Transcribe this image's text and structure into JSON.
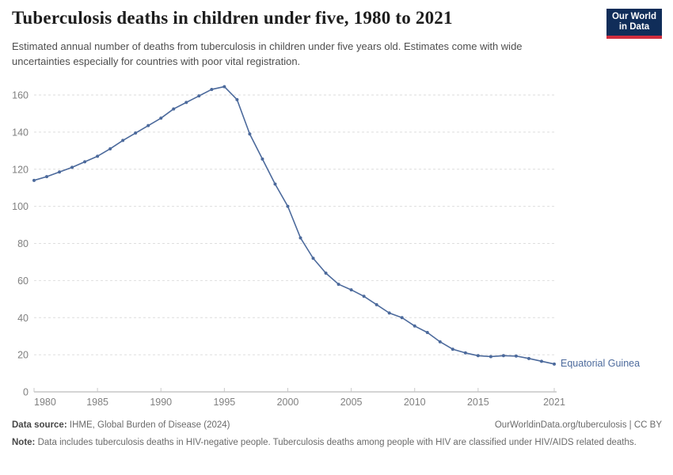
{
  "header": {
    "title": "Tuberculosis deaths in children under five, 1980 to 2021",
    "subtitle": "Estimated annual number of deaths from tuberculosis in children under five years old. Estimates come with wide uncertainties especially for countries with poor vital registration.",
    "logo": {
      "line1": "Our World",
      "line2": "in Data",
      "bg": "#102D59",
      "accent": "#D12D3E"
    }
  },
  "chart_data": {
    "type": "line",
    "title": "Tuberculosis deaths in children under five, 1980 to 2021",
    "xlabel": "",
    "ylabel": "",
    "xlim": [
      1980,
      2021
    ],
    "ylim": [
      0,
      170
    ],
    "x_ticks": [
      1980,
      1985,
      1990,
      1995,
      2000,
      2005,
      2010,
      2015,
      2021
    ],
    "y_ticks": [
      0,
      20,
      40,
      60,
      80,
      100,
      120,
      140,
      160
    ],
    "grid": "horizontal-dashed",
    "legend_position": "end-of-line-label",
    "end_label": "Equatorial Guinea",
    "series": [
      {
        "name": "Equatorial Guinea",
        "color": "#4C6A9C",
        "x": [
          1980,
          1981,
          1982,
          1983,
          1984,
          1985,
          1986,
          1987,
          1988,
          1989,
          1990,
          1991,
          1992,
          1993,
          1994,
          1995,
          1996,
          1997,
          1998,
          1999,
          2000,
          2001,
          2002,
          2003,
          2004,
          2005,
          2006,
          2007,
          2008,
          2009,
          2010,
          2011,
          2012,
          2013,
          2014,
          2015,
          2016,
          2017,
          2018,
          2019,
          2020,
          2021
        ],
        "values": [
          114,
          116,
          118.5,
          121,
          124,
          127,
          131,
          135.5,
          139.5,
          143.5,
          147.5,
          152.5,
          156,
          159.5,
          163,
          164.5,
          157.5,
          139,
          125.5,
          112,
          100,
          83,
          72,
          64,
          58,
          55,
          51.5,
          47,
          42.5,
          40,
          35.5,
          32,
          27,
          23,
          21,
          19.5,
          19,
          19.5,
          19.3,
          18,
          16.5,
          15
        ]
      }
    ]
  },
  "footer": {
    "datasource_label": "Data source:",
    "datasource_text": "IHME, Global Burden of Disease (2024)",
    "link": "OurWorldinData.org/tuberculosis | CC BY",
    "note_label": "Note:",
    "note_text": "Data includes tuberculosis deaths in HIV-negative people. Tuberculosis deaths among people with HIV are classified under HIV/AIDS related deaths."
  }
}
